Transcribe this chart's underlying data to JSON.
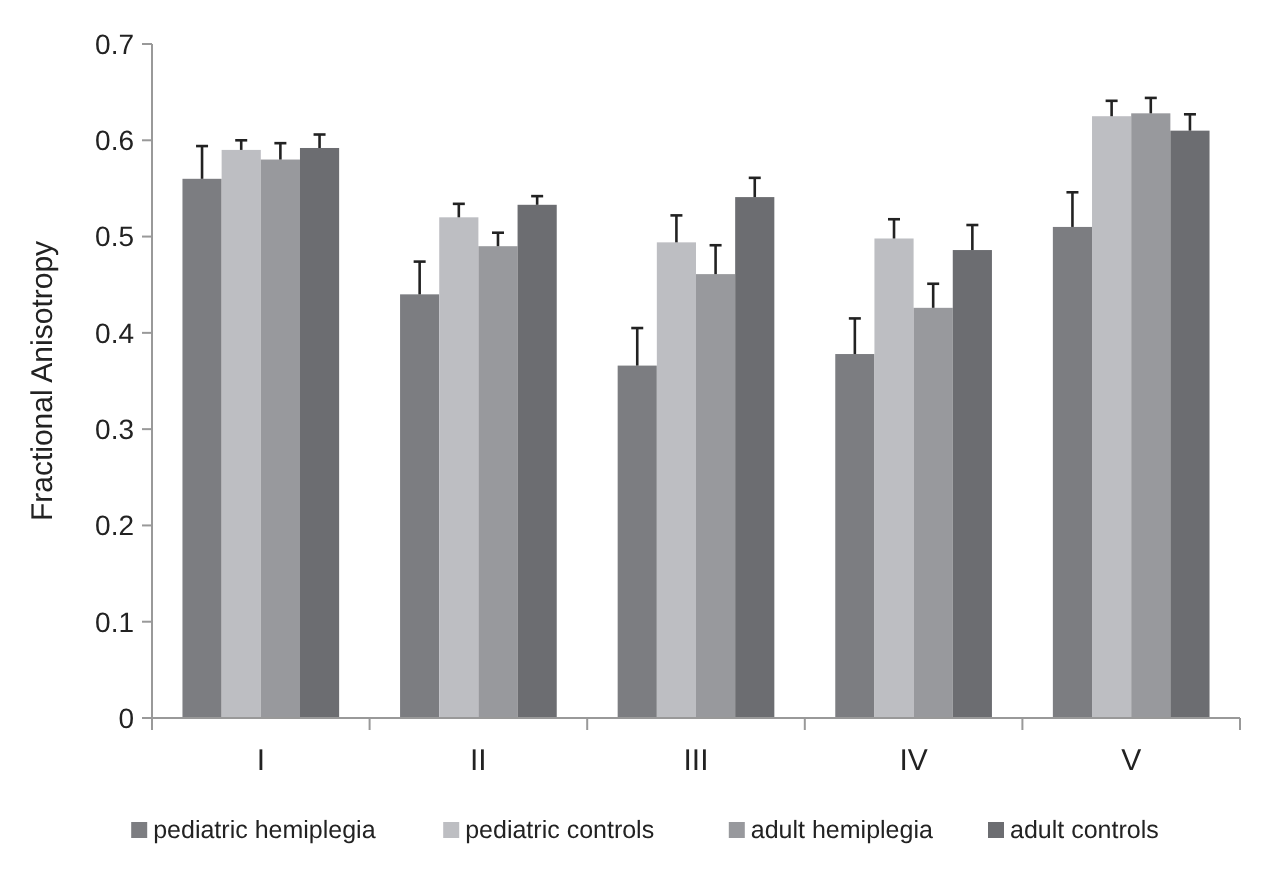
{
  "chart_data": {
    "type": "bar",
    "ylabel": "Fractional Anisotropy",
    "categories": [
      "I",
      "II",
      "III",
      "IV",
      "V"
    ],
    "series": [
      {
        "name": "pediatric hemiplegia",
        "color": "#7c7d81",
        "values": [
          0.56,
          0.44,
          0.366,
          0.378,
          0.51
        ],
        "errors": [
          [
            0.56,
            0.594
          ],
          [
            0.44,
            0.474
          ],
          [
            0.366,
            0.405
          ],
          [
            0.378,
            0.415
          ],
          [
            0.51,
            0.546
          ]
        ]
      },
      {
        "name": "pediatric controls",
        "color": "#bdbec2",
        "values": [
          0.59,
          0.52,
          0.494,
          0.498,
          0.625
        ],
        "errors": [
          [
            0.59,
            0.6
          ],
          [
            0.52,
            0.534
          ],
          [
            0.494,
            0.522
          ],
          [
            0.498,
            0.518
          ],
          [
            0.625,
            0.641
          ]
        ]
      },
      {
        "name": "adult hemiplegia",
        "color": "#98999d",
        "values": [
          0.58,
          0.49,
          0.461,
          0.426,
          0.628
        ],
        "errors": [
          [
            0.58,
            0.597
          ],
          [
            0.49,
            0.504
          ],
          [
            0.461,
            0.491
          ],
          [
            0.426,
            0.451
          ],
          [
            0.628,
            0.644
          ]
        ]
      },
      {
        "name": "adult controls",
        "color": "#6c6d71",
        "values": [
          0.592,
          0.533,
          0.541,
          0.486,
          0.61
        ],
        "errors": [
          [
            0.592,
            0.606
          ],
          [
            0.533,
            0.542
          ],
          [
            0.541,
            0.561
          ],
          [
            0.486,
            0.512
          ],
          [
            0.61,
            0.627
          ]
        ]
      }
    ],
    "ylim": [
      0,
      0.7
    ],
    "yticks": [
      0,
      0.1,
      0.2,
      0.3,
      0.4,
      0.5,
      0.6,
      0.7
    ],
    "grid": false,
    "legend": "bottom"
  }
}
